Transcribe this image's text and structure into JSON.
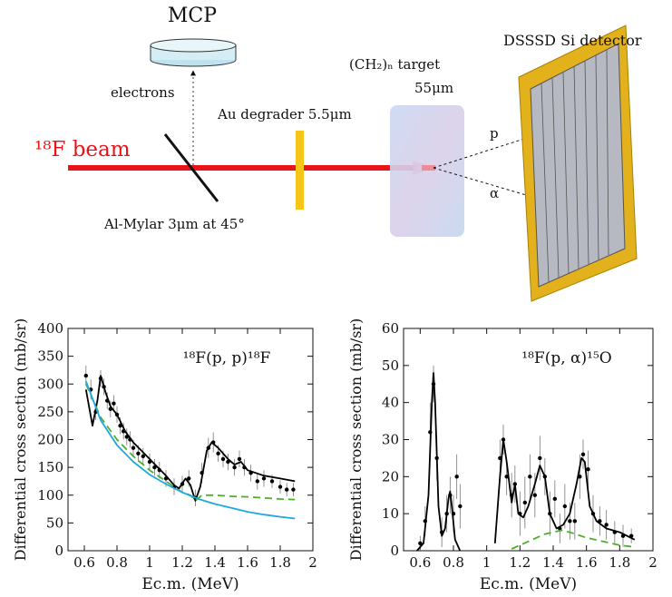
{
  "diagram": {
    "mcp": "MCP",
    "electrons": "electrons",
    "beam": "¹⁸F beam",
    "mylar": "Al-Mylar 3μm at 45°",
    "degrader": "Au degrader 5.5μm",
    "target": "(CH₂)ₙ target",
    "target_thickness": "55μm",
    "proton": "p",
    "alpha": "α",
    "detector": "DSSSD Si detector"
  },
  "chart_data": [
    {
      "type": "line",
      "annotation": "¹⁸F(p, p)¹⁸F",
      "x_label": "Ec.m. (MeV)",
      "y_label": "Differential cross section (mb/sr)",
      "xlim": [
        0.5,
        2
      ],
      "xticks": [
        0.6,
        0.8,
        1,
        1.2,
        1.4,
        1.6,
        1.8,
        2
      ],
      "ylim": [
        0,
        400
      ],
      "yticks": [
        0,
        50,
        100,
        150,
        200,
        250,
        300,
        350,
        400
      ],
      "series": [
        {
          "style": "points",
          "color": "#000000",
          "x": [
            0.61,
            0.64,
            0.67,
            0.7,
            0.72,
            0.74,
            0.76,
            0.78,
            0.8,
            0.82,
            0.84,
            0.86,
            0.88,
            0.9,
            0.93,
            0.96,
            1.0,
            1.03,
            1.06,
            1.1,
            1.15,
            1.2,
            1.24,
            1.28,
            1.32,
            1.36,
            1.39,
            1.42,
            1.45,
            1.48,
            1.52,
            1.55,
            1.58,
            1.62,
            1.66,
            1.7,
            1.75,
            1.8,
            1.84,
            1.88
          ],
          "values": [
            315,
            290,
            250,
            310,
            295,
            270,
            255,
            265,
            245,
            225,
            215,
            205,
            200,
            185,
            175,
            170,
            160,
            150,
            145,
            130,
            115,
            120,
            130,
            95,
            140,
            185,
            195,
            175,
            165,
            160,
            150,
            165,
            150,
            140,
            125,
            130,
            125,
            115,
            110,
            110
          ],
          "errors": [
            18,
            18,
            15,
            15,
            15,
            15,
            15,
            15,
            15,
            15,
            15,
            15,
            15,
            15,
            15,
            15,
            15,
            15,
            15,
            15,
            15,
            15,
            15,
            15,
            18,
            18,
            18,
            15,
            15,
            15,
            15,
            15,
            15,
            15,
            15,
            15,
            12,
            12,
            12,
            12
          ]
        },
        {
          "style": "solid",
          "color": "#000000",
          "x": [
            0.61,
            0.65,
            0.68,
            0.7,
            0.73,
            0.76,
            0.8,
            0.85,
            0.9,
            0.95,
            1.0,
            1.05,
            1.1,
            1.15,
            1.18,
            1.22,
            1.25,
            1.28,
            1.31,
            1.35,
            1.38,
            1.42,
            1.48,
            1.52,
            1.56,
            1.6,
            1.7,
            1.8,
            1.89
          ],
          "values": [
            290,
            225,
            270,
            315,
            285,
            260,
            245,
            215,
            195,
            180,
            165,
            150,
            135,
            118,
            112,
            130,
            118,
            90,
            115,
            180,
            195,
            185,
            165,
            155,
            160,
            145,
            135,
            130,
            125
          ]
        },
        {
          "style": "dashed",
          "color": "#4caf2a",
          "x": [
            0.61,
            0.7,
            0.8,
            0.9,
            1.0,
            1.1,
            1.2,
            1.25,
            1.28,
            1.32,
            1.4,
            1.5,
            1.6,
            1.7,
            1.8,
            1.89
          ],
          "values": [
            300,
            240,
            200,
            170,
            145,
            125,
            105,
            100,
            90,
            100,
            100,
            98,
            97,
            95,
            93,
            92
          ]
        },
        {
          "style": "solid",
          "color": "#1ea8e0",
          "x": [
            0.61,
            0.7,
            0.8,
            0.9,
            1.0,
            1.1,
            1.2,
            1.3,
            1.4,
            1.5,
            1.6,
            1.7,
            1.8,
            1.89
          ],
          "values": [
            305,
            235,
            190,
            160,
            137,
            120,
            105,
            93,
            84,
            77,
            70,
            65,
            61,
            58
          ]
        }
      ]
    },
    {
      "type": "line",
      "annotation": "¹⁸F(p, α)¹⁵O",
      "x_label": "Ec.m. (MeV)",
      "y_label": "Differential cross section (mb/sr)",
      "xlim": [
        0.5,
        2
      ],
      "xticks": [
        0.6,
        0.8,
        1,
        1.2,
        1.4,
        1.6,
        1.8,
        2
      ],
      "ylim": [
        0,
        60
      ],
      "yticks": [
        0,
        10,
        20,
        30,
        40,
        50,
        60
      ],
      "series": [
        {
          "style": "points",
          "color": "#000000",
          "x": [
            0.6,
            0.63,
            0.66,
            0.68,
            0.7,
            0.73,
            0.76,
            0.78,
            0.8,
            0.82,
            0.84,
            1.08,
            1.1,
            1.12,
            1.15,
            1.17,
            1.2,
            1.23,
            1.26,
            1.29,
            1.32,
            1.35,
            1.38,
            1.41,
            1.44,
            1.47,
            1.5,
            1.53,
            1.56,
            1.58,
            1.61,
            1.64,
            1.68,
            1.72,
            1.77,
            1.82,
            1.87
          ],
          "values": [
            2,
            8,
            32,
            45,
            25,
            5,
            10,
            15,
            10,
            20,
            12,
            25,
            30,
            20,
            15,
            18,
            10,
            13,
            20,
            15,
            25,
            20,
            10,
            14,
            6,
            12,
            8,
            8,
            20,
            26,
            22,
            10,
            8,
            7,
            5,
            4,
            4
          ],
          "errors": [
            2,
            4,
            8,
            5,
            6,
            4,
            5,
            5,
            5,
            6,
            6,
            5,
            4,
            5,
            6,
            5,
            6,
            7,
            6,
            6,
            6,
            5,
            6,
            5,
            4,
            6,
            5,
            5,
            6,
            4,
            5,
            5,
            4,
            4,
            3,
            3,
            2
          ]
        },
        {
          "style": "solid",
          "color": "#000000",
          "x": [
            0.58,
            0.62,
            0.65,
            0.67,
            0.68,
            0.69,
            0.71,
            0.73,
            0.75,
            0.77,
            0.78,
            0.79,
            0.81,
            0.84,
            0.95,
            1.05,
            1.08,
            1.1,
            1.12,
            1.15,
            1.17,
            1.19,
            1.22,
            1.25,
            1.29,
            1.32,
            1.35,
            1.38,
            1.42,
            1.46,
            1.5,
            1.54,
            1.57,
            1.59,
            1.62,
            1.66,
            1.72,
            1.8,
            1.89
          ],
          "values": [
            0,
            2,
            15,
            40,
            48,
            40,
            12,
            4,
            6,
            14,
            16,
            12,
            3,
            0,
            null,
            2,
            20,
            30,
            24,
            13,
            18,
            10,
            9,
            12,
            18,
            23,
            20,
            10,
            6,
            7,
            10,
            18,
            25,
            24,
            12,
            8,
            6,
            5,
            3
          ]
        },
        {
          "style": "dashed",
          "color": "#4caf2a",
          "x": [
            1.15,
            1.25,
            1.35,
            1.45,
            1.5,
            1.6,
            1.7,
            1.8,
            1.89
          ],
          "values": [
            0.5,
            2.5,
            4.5,
            5.5,
            5,
            3.5,
            2.5,
            1.5,
            1
          ]
        }
      ]
    }
  ]
}
